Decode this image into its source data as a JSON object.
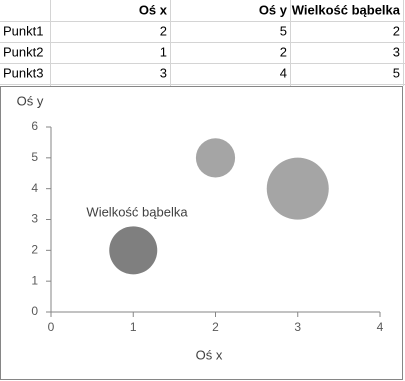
{
  "table": {
    "header": [
      "Oś x",
      "Oś y",
      "Wielkość bąbelka"
    ],
    "rows": [
      [
        "Punkt1",
        "2",
        "5",
        "2"
      ],
      [
        "Punkt2",
        "1",
        "2",
        "3"
      ],
      [
        "Punkt3",
        "3",
        "4",
        "5"
      ]
    ]
  },
  "chart_data": {
    "type": "bubble",
    "x_label": "Oś x",
    "y_label": "Oś y",
    "annotation": "Wielkość bąbelka",
    "x": [
      2,
      1,
      3
    ],
    "series": [
      {
        "values": [
          5,
          2,
          4
        ],
        "sizes": [
          2,
          3,
          5
        ],
        "colors": [
          "#a5a5a5",
          "#7f7f7f",
          "#a5a5a5"
        ]
      }
    ],
    "xlim": [
      0,
      4
    ],
    "xticks": [
      0,
      1,
      2,
      3,
      4
    ],
    "ylim": [
      0,
      6
    ],
    "yticks": [
      0,
      1,
      2,
      3,
      4,
      5,
      6
    ],
    "grid": false
  }
}
